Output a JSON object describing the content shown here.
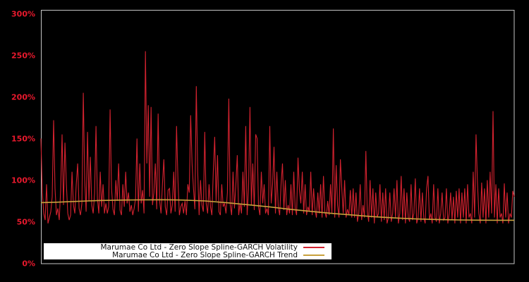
{
  "chart_data": {
    "type": "line",
    "title": "",
    "xlabel": "",
    "ylabel": "",
    "x_axis_labels_visible": false,
    "grid": false,
    "background_color": "#000000",
    "plot_border_color": "#c3c3c3",
    "tick_label_color": "#e8192d",
    "legend_position": "bottom-inside",
    "legend_background": "#ffffff",
    "ylim": [
      0,
      305
    ],
    "y_ticks": [
      {
        "value": 0,
        "label": "0%"
      },
      {
        "value": 50,
        "label": "50%"
      },
      {
        "value": 100,
        "label": "100%"
      },
      {
        "value": 150,
        "label": "150%"
      },
      {
        "value": 200,
        "label": "200%"
      },
      {
        "value": 250,
        "label": "250%"
      },
      {
        "value": 300,
        "label": "300%"
      }
    ],
    "series": [
      {
        "name": "Marumae Co Ltd - Zero Slope Spline-GARCH Volatility",
        "color": "#d3222f",
        "style": "noisy-line",
        "unit": "%",
        "values": [
          150,
          85,
          60,
          52,
          95,
          48,
          55,
          62,
          80,
          172,
          90,
          58,
          66,
          52,
          88,
          155,
          70,
          145,
          95,
          60,
          52,
          58,
          110,
          70,
          60,
          95,
          120,
          66,
          58,
          72,
          205,
          100,
          62,
          158,
          75,
          128,
          70,
          60,
          84,
          165,
          78,
          60,
          110,
          68,
          95,
          60,
          72,
          60,
          68,
          185,
          90,
          65,
          58,
          100,
          75,
          120,
          64,
          58,
          95,
          68,
          110,
          72,
          85,
          62,
          70,
          58,
          66,
          78,
          150,
          62,
          120,
          72,
          88,
          60,
          255,
          120,
          190,
          80,
          188,
          70,
          85,
          120,
          65,
          180,
          75,
          60,
          95,
          125,
          68,
          58,
          88,
          90,
          60,
          70,
          110,
          62,
          165,
          100,
          58,
          68,
          72,
          60,
          75,
          58,
          95,
          85,
          178,
          120,
          90,
          65,
          213,
          110,
          58,
          100,
          70,
          62,
          158,
          72,
          60,
          95,
          68,
          58,
          110,
          152,
          75,
          130,
          62,
          58,
          95,
          68,
          72,
          60,
          85,
          198,
          70,
          58,
          110,
          66,
          95,
          130,
          58,
          72,
          60,
          110,
          68,
          165,
          58,
          90,
          188,
          70,
          120,
          64,
          155,
          150,
          68,
          58,
          110,
          72,
          95,
          60,
          66,
          58,
          165,
          72,
          95,
          140,
          60,
          110,
          68,
          58,
          95,
          120,
          64,
          100,
          58,
          70,
          60,
          95,
          58,
          110,
          66,
          58,
          127,
          88,
          72,
          110,
          60,
          95,
          58,
          68,
          62,
          110,
          58,
          90,
          65,
          55,
          85,
          60,
          95,
          55,
          105,
          62,
          55,
          75,
          58,
          95,
          60,
          162,
          55,
          118,
          70,
          55,
          125,
          90,
          60,
          100,
          55,
          65,
          58,
          88,
          55,
          90,
          55,
          85,
          50,
          60,
          95,
          52,
          70,
          55,
          135,
          62,
          50,
          100,
          55,
          90,
          48,
          85,
          55,
          60,
          95,
          50,
          85,
          52,
          90,
          48,
          55,
          85,
          50,
          60,
          90,
          55,
          100,
          48,
          60,
          105,
          52,
          90,
          48,
          85,
          55,
          50,
          95,
          52,
          60,
          102,
          48,
          55,
          90,
          50,
          85,
          55,
          48,
          90,
          105,
          52,
          60,
          48,
          95,
          55,
          50,
          90,
          48,
          60,
          85,
          52,
          55,
          90,
          48,
          60,
          85,
          52,
          80,
          48,
          87,
          55,
          90,
          48,
          85,
          55,
          90,
          48,
          95,
          55,
          60,
          48,
          110,
          55,
          155,
          97,
          60,
          48,
          97,
          55,
          90,
          48,
          100,
          55,
          110,
          60,
          183,
          55,
          95,
          48,
          90,
          55,
          60,
          48,
          96,
          55,
          85,
          48,
          60,
          55,
          87,
          80
        ]
      },
      {
        "name": "Marumae Co Ltd - Zero Slope Spline-GARCH Trend",
        "color": "#c9a13c",
        "style": "smooth-spline",
        "unit": "%",
        "points": [
          [
            0,
            73
          ],
          [
            11,
            73.5
          ],
          [
            26,
            74.5
          ],
          [
            41,
            75.5
          ],
          [
            56,
            76
          ],
          [
            71,
            76.3
          ],
          [
            86,
            76.4
          ],
          [
            101,
            76
          ],
          [
            116,
            75
          ],
          [
            131,
            73
          ],
          [
            146,
            70.5
          ],
          [
            161,
            68
          ],
          [
            176,
            65
          ],
          [
            191,
            62.5
          ],
          [
            206,
            60
          ],
          [
            221,
            58
          ],
          [
            236,
            56
          ],
          [
            251,
            54.5
          ],
          [
            266,
            53.3
          ],
          [
            281,
            52.6
          ],
          [
            296,
            52.1
          ],
          [
            311,
            51.9
          ],
          [
            323,
            51.8
          ],
          [
            335,
            51.8
          ]
        ]
      }
    ]
  }
}
